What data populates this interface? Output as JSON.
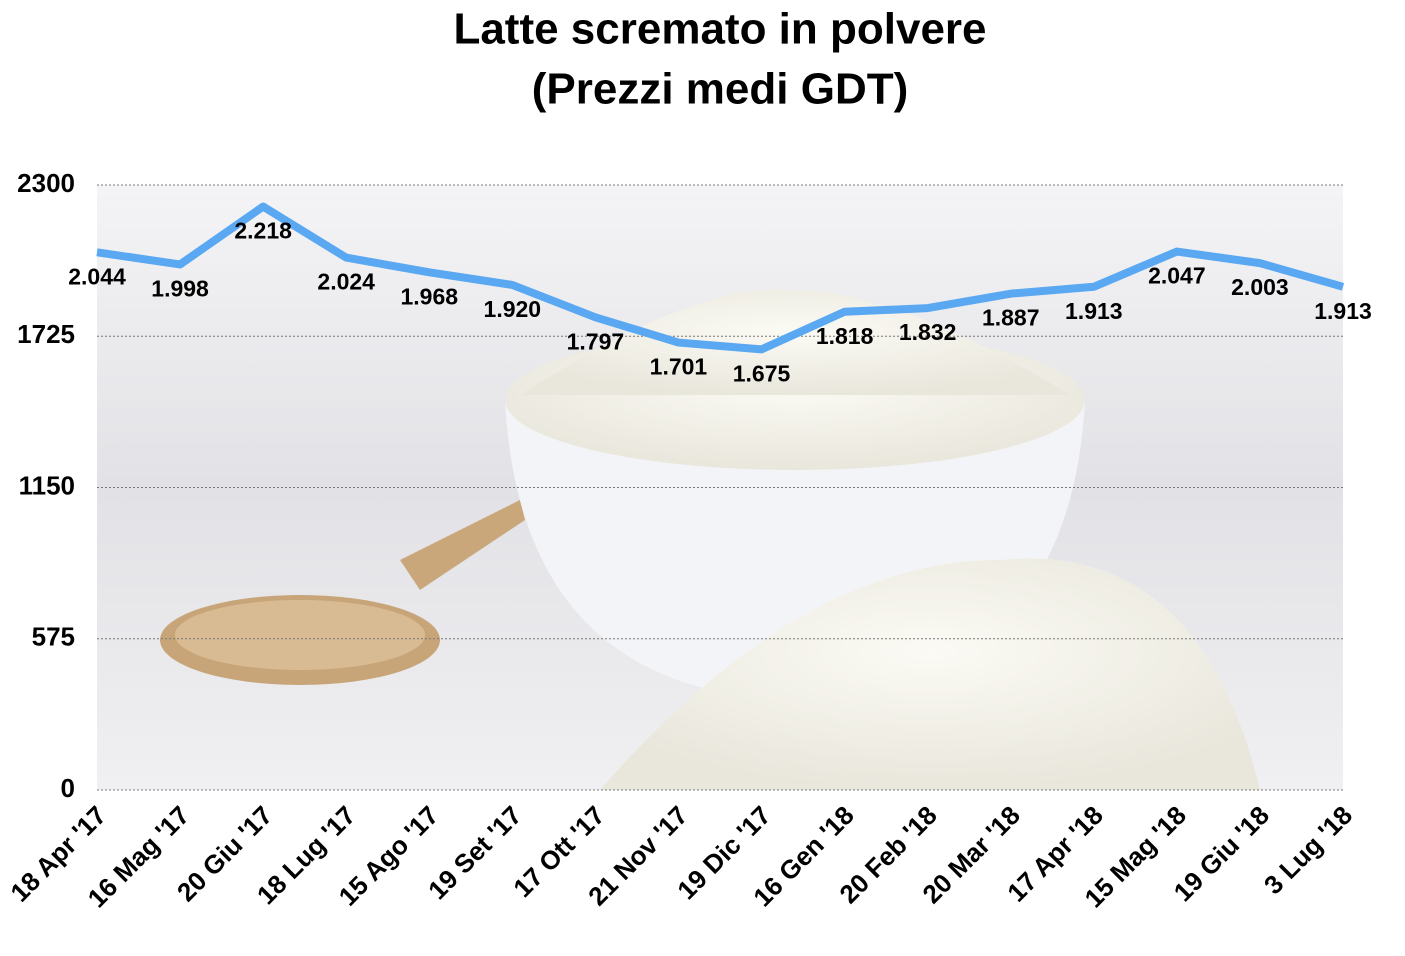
{
  "chart_data": {
    "type": "line",
    "title": "Latte scremato in polvere",
    "subtitle": "(Prezzi medi GDT)",
    "categories": [
      "18 Apr '17",
      "16 Mag '17",
      "20 Giu '17",
      "18 Lug '17",
      "15 Ago '17",
      "19 Set '17",
      "17 Ott '17",
      "21 Nov '17",
      "19 Dic '17",
      "16 Gen '18",
      "20 Feb '18",
      "20 Mar '18",
      "17 Apr '18",
      "15 Mag '18",
      "19 Giu '18",
      "3 Lug '18"
    ],
    "series": [
      {
        "name": "Latte scremato in polvere",
        "color": "#5aa8f2",
        "values": [
          2044,
          1998,
          2218,
          2024,
          1968,
          1920,
          1797,
          1701,
          1675,
          1818,
          1832,
          1887,
          1913,
          2047,
          2003,
          1913
        ],
        "value_labels": [
          "2.044",
          "1.998",
          "2.218",
          "2.024",
          "1.968",
          "1.920",
          "1.797",
          "1.701",
          "1.675",
          "1.818",
          "1.832",
          "1.887",
          "1.913",
          "2.047",
          "2.003",
          "1.913"
        ]
      }
    ],
    "ylim": [
      0,
      2300
    ],
    "yticks": [
      0,
      575,
      1150,
      1725,
      2300
    ],
    "grid": true
  }
}
